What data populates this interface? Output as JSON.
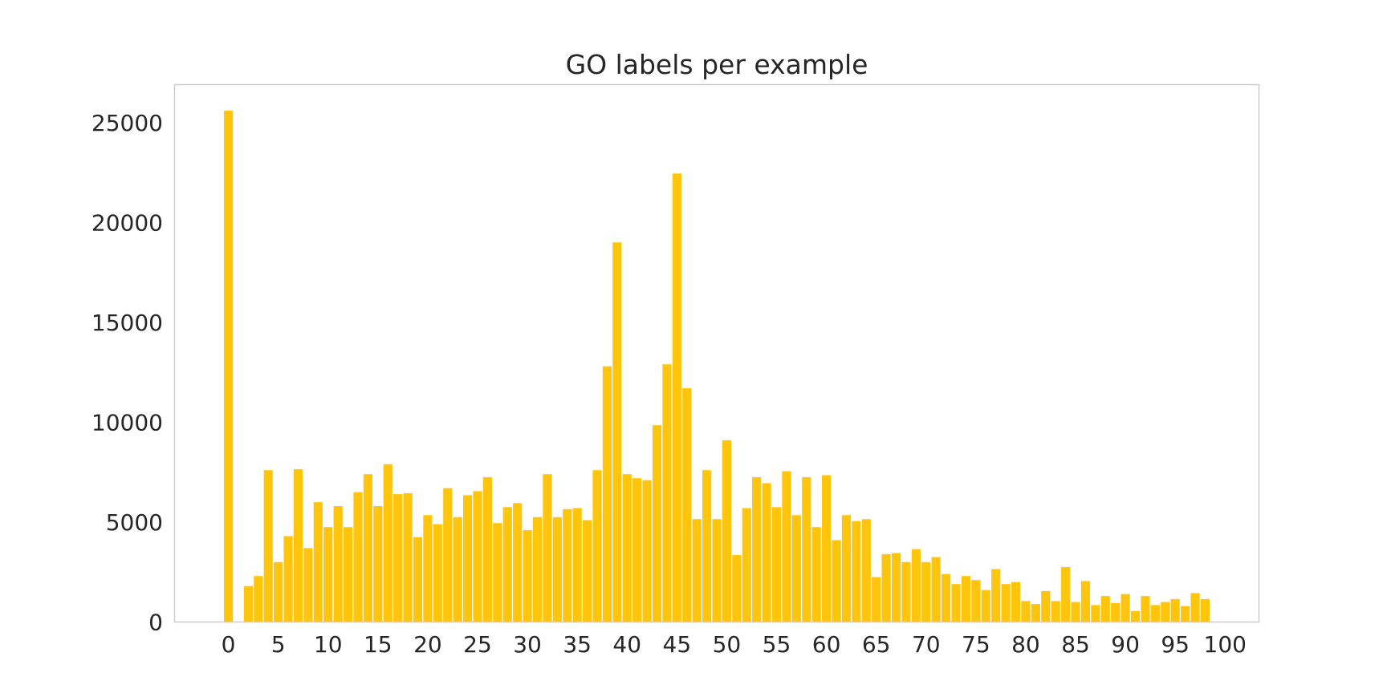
{
  "chart_data": {
    "type": "bar",
    "title": "GO labels per example",
    "xlabel": "",
    "ylabel": "",
    "x": [
      0,
      1,
      2,
      3,
      4,
      5,
      6,
      7,
      8,
      9,
      10,
      11,
      12,
      13,
      14,
      15,
      16,
      17,
      18,
      19,
      20,
      21,
      22,
      23,
      24,
      25,
      26,
      27,
      28,
      29,
      30,
      31,
      32,
      33,
      34,
      35,
      36,
      37,
      38,
      39,
      40,
      41,
      42,
      43,
      44,
      45,
      46,
      47,
      48,
      49,
      50,
      51,
      52,
      53,
      54,
      55,
      56,
      57,
      58,
      59,
      60,
      61,
      62,
      63,
      64,
      65,
      66,
      67,
      68,
      69,
      70,
      71,
      72,
      73,
      74,
      75,
      76,
      77,
      78,
      79,
      80,
      81,
      82,
      83,
      84,
      85,
      86,
      87,
      88,
      89,
      90,
      91,
      92,
      93,
      94,
      95,
      96,
      97,
      98
    ],
    "values": [
      25600,
      0,
      1800,
      2300,
      7600,
      3000,
      4300,
      7650,
      3700,
      6000,
      4750,
      5800,
      4750,
      6500,
      7400,
      5800,
      7900,
      6400,
      6450,
      4250,
      5350,
      4900,
      6700,
      5250,
      6350,
      6550,
      7250,
      4950,
      5750,
      5950,
      4600,
      5250,
      7400,
      5250,
      5650,
      5700,
      5100,
      7600,
      12800,
      19000,
      7400,
      7200,
      7100,
      9850,
      12900,
      22450,
      11700,
      5150,
      7600,
      5150,
      9100,
      3350,
      5700,
      7250,
      6950,
      5750,
      7550,
      5350,
      7250,
      4750,
      7350,
      4100,
      5350,
      5050,
      5150,
      2250,
      3400,
      3450,
      3000,
      3650,
      3000,
      3250,
      2400,
      1900,
      2300,
      2100,
      1600,
      2650,
      1900,
      2000,
      1050,
      900,
      1550,
      1050,
      2750,
      1000,
      2050,
      850,
      1300,
      950,
      1400,
      550,
      1300,
      850,
      1000,
      1150,
      800,
      1450,
      1150
    ],
    "xticks": [
      0,
      5,
      10,
      15,
      20,
      25,
      30,
      35,
      40,
      45,
      50,
      55,
      60,
      65,
      70,
      75,
      80,
      85,
      90,
      95,
      100
    ],
    "yticks": [
      0,
      5000,
      10000,
      15000,
      20000,
      25000
    ],
    "xlim": [
      -5.4,
      103.4
    ],
    "ylim": [
      0,
      26900
    ],
    "grid": false,
    "legend": "none",
    "bar_color": "#ffc40c"
  }
}
